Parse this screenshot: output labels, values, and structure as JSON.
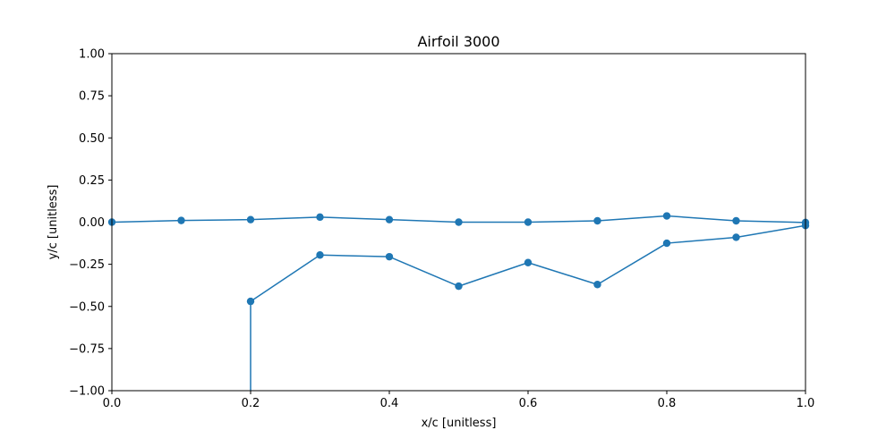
{
  "chart_data": {
    "type": "line",
    "title": "Airfoil 3000",
    "xlabel": "x/c [unitless]",
    "ylabel": "y/c [unitless]",
    "xlim": [
      0.0,
      1.0
    ],
    "ylim": [
      -1.0,
      1.0
    ],
    "xticks": [
      "0.0",
      "0.2",
      "0.4",
      "0.6",
      "0.8",
      "1.0"
    ],
    "xtick_values": [
      0.0,
      0.2,
      0.4,
      0.6,
      0.8,
      1.0
    ],
    "yticks": [
      "−1.00",
      "−0.75",
      "−0.50",
      "−0.25",
      "0.00",
      "0.25",
      "0.50",
      "0.75",
      "1.00"
    ],
    "ytick_values": [
      -1.0,
      -0.75,
      -0.5,
      -0.25,
      0.0,
      0.25,
      0.5,
      0.75,
      1.0
    ],
    "grid": false,
    "legend": "none",
    "color": "#1f77b4",
    "series": [
      {
        "x": [
          0.0,
          0.1,
          0.2,
          0.3,
          0.4,
          0.5,
          0.6,
          0.7,
          0.8,
          0.9,
          1.0
        ],
        "y": [
          0.0,
          0.01,
          0.015,
          0.03,
          0.015,
          0.0,
          0.0,
          0.008,
          0.037,
          0.008,
          -0.002
        ],
        "markers": [
          true,
          true,
          true,
          true,
          true,
          true,
          true,
          true,
          true,
          true,
          true
        ]
      },
      {
        "x": [
          0.2,
          0.2,
          0.3,
          0.4,
          0.5,
          0.6,
          0.7,
          0.8,
          0.9,
          1.0
        ],
        "y": [
          -1.0,
          -0.47,
          -0.195,
          -0.205,
          -0.38,
          -0.24,
          -0.37,
          -0.125,
          -0.09,
          -0.02
        ],
        "markers": [
          false,
          true,
          true,
          true,
          true,
          true,
          true,
          true,
          true,
          true
        ]
      }
    ]
  }
}
